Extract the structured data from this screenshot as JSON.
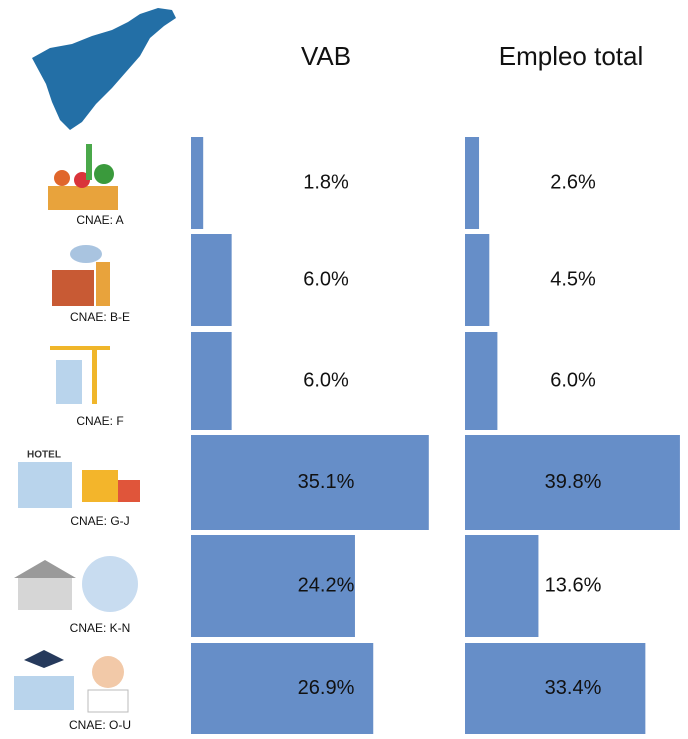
{
  "chart_data": {
    "type": "bar",
    "categories": [
      "CNAE: A",
      "CNAE: B-E",
      "CNAE: F",
      "CNAE: G-J",
      "CNAE: K-N",
      "CNAE: O-U"
    ],
    "series": [
      {
        "name": "VAB",
        "color": "#668ec8",
        "values": [
          1.8,
          6.0,
          6.0,
          35.1,
          24.2,
          26.9
        ],
        "value_labels": [
          "1.8%",
          "6.0%",
          "6.0%",
          "35.1%",
          "24.2%",
          "26.9%"
        ]
      },
      {
        "name": "Empleo total",
        "color": "#668ec8",
        "values": [
          2.6,
          4.5,
          6.0,
          39.8,
          13.6,
          33.4
        ],
        "value_labels": [
          "2.6%",
          "4.5%",
          "6.0%",
          "39.8%",
          "13.6%",
          "33.4%"
        ]
      }
    ],
    "xlim": [
      0,
      40
    ]
  }
}
